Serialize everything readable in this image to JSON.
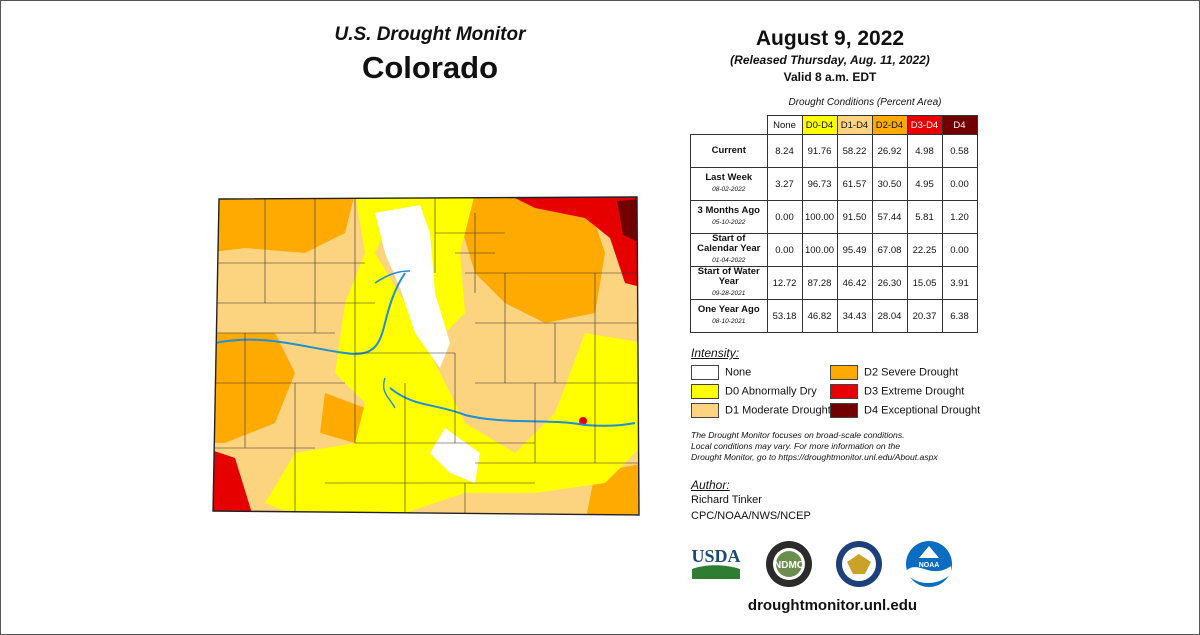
{
  "header": {
    "title_line1": "U.S. Drought Monitor",
    "title_line2": "Colorado",
    "date": "August 9, 2022",
    "released": "(Released Thursday, Aug. 11, 2022)",
    "valid": "Valid 8 a.m. EDT"
  },
  "table": {
    "caption": "Drought Conditions (Percent Area)",
    "columns": [
      {
        "label": "None",
        "color": "#ffffff"
      },
      {
        "label": "D0-D4",
        "color": "#ffff00"
      },
      {
        "label": "D1-D4",
        "color": "#fcd37f"
      },
      {
        "label": "D2-D4",
        "color": "#ffaa00"
      },
      {
        "label": "D3-D4",
        "color": "#e60000"
      },
      {
        "label": "D4",
        "color": "#730000"
      }
    ],
    "rows": [
      {
        "label": "Current",
        "date": "",
        "values": [
          "8.24",
          "91.76",
          "58.22",
          "26.92",
          "4.98",
          "0.58"
        ]
      },
      {
        "label": "Last Week",
        "date": "08-02-2022",
        "values": [
          "3.27",
          "96.73",
          "61.57",
          "30.50",
          "4.95",
          "0.00"
        ]
      },
      {
        "label": "3 Months Ago",
        "date": "05-10-2022",
        "values": [
          "0.00",
          "100.00",
          "91.50",
          "57.44",
          "5.81",
          "1.20"
        ]
      },
      {
        "label": "Start of Calendar Year",
        "date": "01-04-2022",
        "values": [
          "0.00",
          "100.00",
          "95.49",
          "67.08",
          "22.25",
          "0.00"
        ]
      },
      {
        "label": "Start of Water Year",
        "date": "09-28-2021",
        "values": [
          "12.72",
          "87.28",
          "46.42",
          "26.30",
          "15.05",
          "3.91"
        ]
      },
      {
        "label": "One Year Ago",
        "date": "08-10-2021",
        "values": [
          "53.18",
          "46.82",
          "34.43",
          "28.04",
          "20.37",
          "6.38"
        ]
      }
    ]
  },
  "legend": {
    "title": "Intensity:",
    "items": [
      {
        "label": "None",
        "color": "#ffffff"
      },
      {
        "label": "D0 Abnormally Dry",
        "color": "#ffff00"
      },
      {
        "label": "D1 Moderate Drought",
        "color": "#fcd37f"
      },
      {
        "label": "D2 Severe Drought",
        "color": "#ffaa00"
      },
      {
        "label": "D3 Extreme Drought",
        "color": "#e60000"
      },
      {
        "label": "D4 Exceptional Drought",
        "color": "#730000"
      }
    ]
  },
  "note": {
    "line1": "The Drought Monitor focuses on broad-scale conditions.",
    "line2": "Local conditions may vary. For more information on the",
    "line3": "Drought Monitor, go to https://droughtmonitor.unl.edu/About.aspx"
  },
  "author": {
    "title": "Author:",
    "name": "Richard Tinker",
    "org": "CPC/NOAA/NWS/NCEP"
  },
  "logos": {
    "usda": "USDA",
    "ndmc": "NDMC",
    "noaa": "NOAA"
  },
  "footer_url": "droughtmonitor.unl.edu"
}
